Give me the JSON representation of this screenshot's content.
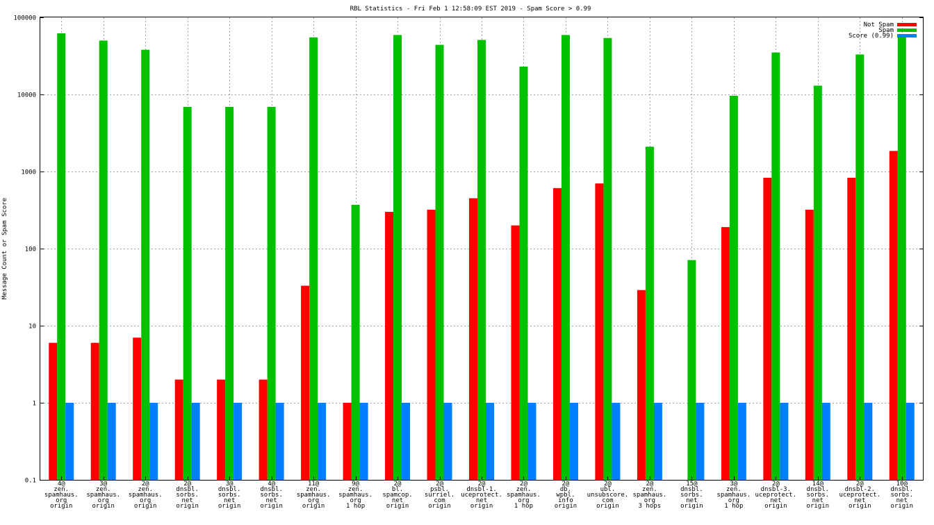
{
  "chart_data": {
    "type": "bar",
    "title": "RBL Statistics - Fri Feb  1 12:58:09 EST 2019 - Spam Score > 0.99",
    "ylabel": "Message Count or Spam Score",
    "xlabel": "",
    "yscale": "log",
    "ylim": [
      0.1,
      100000
    ],
    "yticks": [
      "0.1",
      "1",
      "10",
      "100",
      "1000",
      "10000",
      "100000"
    ],
    "grid": true,
    "legend_position": "top-right",
    "categories": [
      [
        "4@",
        "zen.",
        "spamhaus.",
        "org",
        "origin"
      ],
      [
        "3@",
        "zen.",
        "spamhaus.",
        "org",
        "origin"
      ],
      [
        "2@",
        "zen.",
        "spamhaus.",
        "org",
        "origin"
      ],
      [
        "2@",
        "dnsbl.",
        "sorbs.",
        "net",
        "origin"
      ],
      [
        "3@",
        "dnsbl.",
        "sorbs.",
        "net",
        "origin"
      ],
      [
        "4@",
        "dnsbl.",
        "sorbs.",
        "net",
        "origin"
      ],
      [
        "11@",
        "zen.",
        "spamhaus.",
        "org",
        "origin"
      ],
      [
        "9@",
        "zen.",
        "spamhaus.",
        "org",
        "1 hop"
      ],
      [
        "2@",
        "bl.",
        "spamcop.",
        "net",
        "origin"
      ],
      [
        "2@",
        "psbl.",
        "surriel.",
        "com",
        "origin"
      ],
      [
        "2@",
        "dnsbl-1.",
        "uceprotect.",
        "net",
        "origin"
      ],
      [
        "2@",
        "zen.",
        "spamhaus.",
        "org",
        "1 hop"
      ],
      [
        "2@",
        "db.",
        "wpbl.",
        "info",
        "origin"
      ],
      [
        "2@",
        "ubl.",
        "unsubscore.",
        "com",
        "origin"
      ],
      [
        "2@",
        "zen.",
        "spamhaus.",
        "org",
        "3 hops"
      ],
      [
        "15@",
        "dnsbl.",
        "sorbs.",
        "net",
        "origin"
      ],
      [
        "3@",
        "zen.",
        "spamhaus.",
        "org",
        "1 hop"
      ],
      [
        "2@",
        "dnsbl-3.",
        "uceprotect.",
        "net",
        "origin"
      ],
      [
        "14@",
        "dnsbl.",
        "sorbs.",
        "net",
        "origin"
      ],
      [
        "2@",
        "dnsbl-2.",
        "uceprotect.",
        "net",
        "origin"
      ],
      [
        "10@",
        "dnsbl.",
        "sorbs.",
        "net",
        "origin"
      ]
    ],
    "series": [
      {
        "name": "Not Spam",
        "color": "#ff0000",
        "values": [
          6,
          6,
          7,
          2,
          2,
          2,
          33,
          1,
          300,
          320,
          450,
          200,
          610,
          700,
          29,
          null,
          190,
          830,
          320,
          830,
          1850
        ]
      },
      {
        "name": "Spam",
        "color": "#00c000",
        "values": [
          62000,
          50000,
          38000,
          6900,
          6900,
          6900,
          55000,
          370,
          59000,
          44000,
          51000,
          23000,
          59000,
          54000,
          2100,
          71,
          9600,
          35000,
          13000,
          33000,
          60000
        ]
      },
      {
        "name": "Score (0.99)",
        "color": "#0080ff",
        "values": [
          1,
          1,
          1,
          1,
          1,
          1,
          1,
          1,
          1,
          1,
          1,
          1,
          1,
          1,
          1,
          1,
          1,
          1,
          1,
          1,
          1
        ]
      }
    ]
  }
}
